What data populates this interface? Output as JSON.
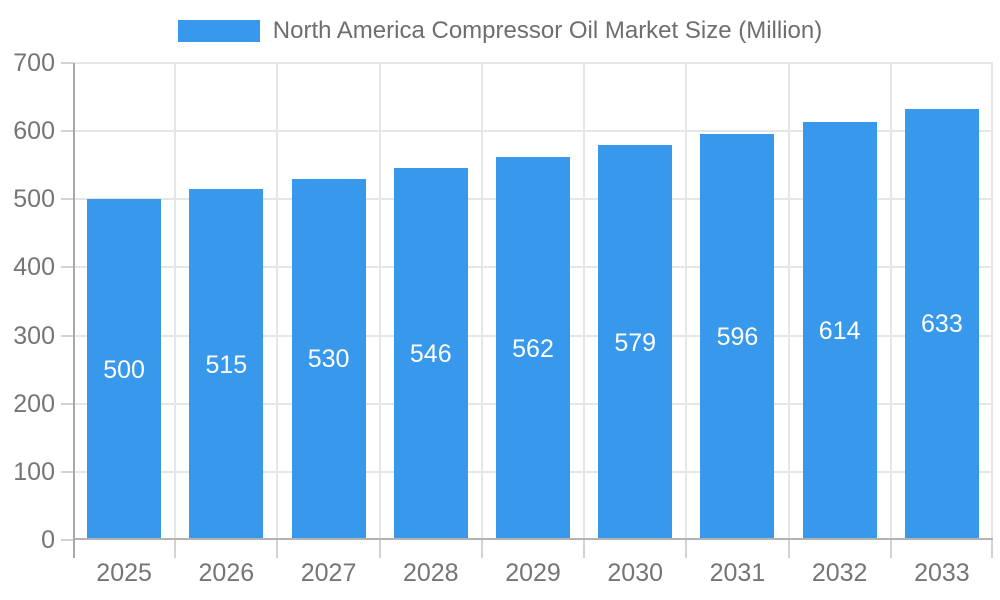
{
  "chart_data": {
    "type": "bar",
    "title": "North America Compressor Oil Market Size (Million)",
    "categories": [
      "2025",
      "2026",
      "2027",
      "2028",
      "2029",
      "2030",
      "2031",
      "2032",
      "2033"
    ],
    "series": [
      {
        "name": "North America Compressor Oil Market Size (Million)",
        "values": [
          500,
          515,
          530,
          546,
          562,
          579,
          596,
          614,
          633
        ]
      }
    ],
    "value_labels": [
      500,
      515,
      530,
      546,
      562,
      579,
      596,
      614,
      633
    ],
    "value_label_position": "inside-center",
    "xlabel": "",
    "ylabel": "",
    "ylim": [
      0,
      700
    ],
    "yticks": [
      0,
      100,
      200,
      300,
      400,
      500,
      600,
      700
    ],
    "grid": true,
    "legend_position": "top-center",
    "colors": {
      "bar": "#3898ec",
      "gridline": "#e6e6e6",
      "tick": "#d2d2d2",
      "y_axis_line": "#a8a8a8",
      "x_axis_line": "#b3b3b3",
      "axis_label": "#757575",
      "legend_text": "#6e6e6e",
      "value_label": "#ffffff",
      "background": "#ffffff"
    }
  }
}
